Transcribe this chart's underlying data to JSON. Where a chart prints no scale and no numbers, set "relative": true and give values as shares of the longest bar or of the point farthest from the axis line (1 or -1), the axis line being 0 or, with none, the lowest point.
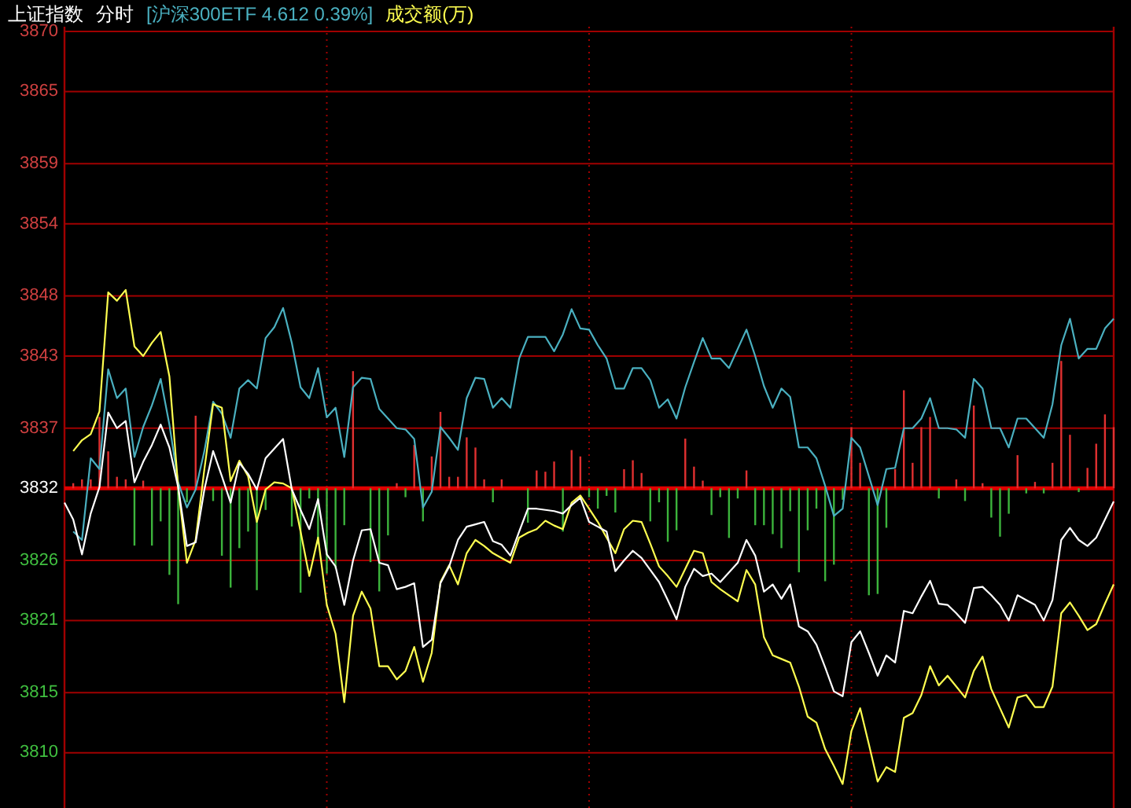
{
  "chart_data": [
    {
      "type": "line",
      "title": "上证指数",
      "subtitle": "分时",
      "grid": true,
      "tick_labels": "y",
      "categories": [
        null,
        null,
        null,
        null,
        null,
        null,
        null,
        null,
        null,
        null,
        null,
        null,
        null,
        null,
        null,
        null,
        null,
        null,
        null,
        null,
        null,
        null,
        null,
        null,
        null,
        null,
        null,
        null,
        null,
        null,
        null,
        null,
        null,
        null,
        null,
        null,
        null,
        null,
        null,
        null,
        null,
        null,
        null,
        null,
        null,
        null,
        null,
        null,
        null,
        null,
        null,
        null,
        null,
        null,
        null,
        null,
        null,
        null,
        null,
        null,
        null,
        null,
        null,
        null,
        null,
        null,
        null,
        null,
        null,
        null,
        null,
        null,
        null,
        null,
        null,
        null,
        null,
        null,
        null,
        null,
        null,
        null,
        null,
        null,
        null,
        null,
        null,
        null,
        null,
        null,
        null,
        null,
        null,
        null,
        null,
        null,
        null,
        null,
        null,
        null,
        null,
        null,
        null,
        null,
        null,
        null,
        null,
        null,
        null,
        null,
        null,
        null,
        null,
        null,
        null,
        null,
        null,
        null,
        null,
        null,
        null
      ],
      "ylim": [
        3805.4,
        3870.4
      ],
      "yticks": [
        3810,
        3815,
        3821,
        3826,
        3832,
        3837,
        3843,
        3848,
        3854,
        3859,
        3865,
        3870
      ],
      "ref_lines": [
        {
          "axis": "y",
          "value": 3832,
          "color": "#e00000"
        }
      ],
      "series": [
        {
          "name": "[沪深300ETF 4.612 0.39%]",
          "color": "#4ab0c0",
          "values": [
            null,
            3828.4,
            3827.7,
            3834.5,
            3833.6,
            3841.9,
            3839.5,
            3840.3,
            3834.6,
            3837.1,
            3838.9,
            3841.1,
            3837.3,
            3832.5,
            3830.4,
            3831.9,
            3835.1,
            3839.2,
            3838.2,
            3836.2,
            3840.3,
            3841.0,
            3840.3,
            3844.5,
            3845.4,
            3847.0,
            3844.1,
            3840.4,
            3839.5,
            3842.0,
            3837.9,
            3838.7,
            3834.6,
            3840.4,
            3841.2,
            3841.1,
            3838.6,
            3837.8,
            3837.0,
            3836.9,
            3836.1,
            3830.4,
            3831.7,
            3837.1,
            3836.2,
            3835.2,
            3839.5,
            3841.2,
            3841.1,
            3838.7,
            3839.5,
            3838.7,
            3842.8,
            3844.6,
            3844.6,
            3844.6,
            3843.4,
            3844.8,
            3846.9,
            3845.3,
            3845.2,
            3843.9,
            3842.8,
            3840.3,
            3840.3,
            3842.0,
            3842.0,
            3841.0,
            3838.7,
            3839.4,
            3837.8,
            3840.4,
            3842.5,
            3844.5,
            3842.8,
            3842.8,
            3842.0,
            3843.6,
            3845.2,
            3843.0,
            3840.5,
            3838.7,
            3840.3,
            3839.6,
            3835.4,
            3835.4,
            3834.5,
            3832.2,
            3829.7,
            3830.3,
            3836.2,
            3835.4,
            3833.0,
            3830.6,
            3833.6,
            3833.7,
            3837.0,
            3837.0,
            3837.8,
            3839.5,
            3837.0,
            3837.0,
            3836.9,
            3836.2,
            3841.1,
            3840.3,
            3837.0,
            3837.0,
            3835.4,
            3837.8,
            3837.8,
            3837.0,
            3836.2,
            3839.0,
            3843.9,
            3846.1,
            3842.8,
            3843.6,
            3843.6,
            3845.3,
            3846.1
          ]
        },
        {
          "name": "成交额(万)",
          "color": "#ffff50",
          "values": [
            null,
            3835.1,
            3836.0,
            3836.5,
            3838.4,
            3848.3,
            3847.6,
            3848.5,
            3843.8,
            3843.0,
            3844.1,
            3845.0,
            3841.3,
            3832.1,
            3825.8,
            3827.7,
            3833.6,
            3839.0,
            3838.7,
            3832.6,
            3834.3,
            3833.0,
            3829.2,
            3831.9,
            3832.5,
            3832.4,
            3832.0,
            3828.4,
            3824.7,
            3827.9,
            3822.3,
            3819.9,
            3814.2,
            3821.4,
            3823.4,
            3822.0,
            3817.2,
            3817.2,
            3816.1,
            3816.8,
            3818.8,
            3815.9,
            3818.3,
            3824.2,
            3825.6,
            3824.0,
            3826.6,
            3827.7,
            3827.2,
            3826.6,
            3826.2,
            3825.8,
            3827.9,
            3828.3,
            3828.6,
            3829.3,
            3828.9,
            3828.6,
            3830.8,
            3831.4,
            3830.3,
            3829.2,
            3827.9,
            3826.6,
            3828.6,
            3829.3,
            3829.2,
            3827.4,
            3825.5,
            3824.7,
            3823.8,
            3825.3,
            3826.8,
            3826.6,
            3824.2,
            3823.6,
            3823.1,
            3822.6,
            3825.2,
            3824.0,
            3819.6,
            3818.1,
            3817.8,
            3817.5,
            3815.5,
            3813.0,
            3812.5,
            3810.3,
            3808.9,
            3807.4,
            3811.8,
            3813.7,
            3810.7,
            3807.6,
            3808.8,
            3808.4,
            3812.9,
            3813.3,
            3814.8,
            3817.2,
            3815.6,
            3816.4,
            3815.5,
            3814.6,
            3816.8,
            3818.0,
            3815.3,
            3813.7,
            3812.1,
            3814.6,
            3814.8,
            3813.8,
            3813.8,
            3815.5,
            3821.6,
            3822.5,
            3821.4,
            3820.2,
            3820.7,
            3822.4,
            3824.0
          ]
        },
        {
          "color": "#ffffff",
          "values": [
            3830.8,
            3829.4,
            3826.5,
            3829.9,
            3832.1,
            3838.3,
            3837.0,
            3837.6,
            3832.5,
            3834.2,
            3835.6,
            3837.3,
            3835.4,
            3832.1,
            3827.2,
            3827.5,
            3831.9,
            3835.1,
            3833.0,
            3830.8,
            3834.1,
            3833.2,
            3831.9,
            3834.5,
            3835.3,
            3836.1,
            3831.9,
            3830.2,
            3828.6,
            3831.1,
            3826.5,
            3825.5,
            3822.3,
            3826.0,
            3828.5,
            3828.6,
            3825.8,
            3825.6,
            3823.6,
            3823.8,
            3824.1,
            3818.8,
            3819.4,
            3824.1,
            3825.5,
            3827.7,
            3828.8,
            3829.0,
            3829.2,
            3827.6,
            3827.3,
            3826.4,
            3828.4,
            3830.3,
            3830.3,
            3830.2,
            3830.1,
            3829.9,
            3830.6,
            3831.2,
            3829.2,
            3828.8,
            3828.4,
            3825.1,
            3826.0,
            3826.8,
            3826.2,
            3825.2,
            3824.2,
            3822.7,
            3821.1,
            3823.8,
            3825.3,
            3824.7,
            3824.9,
            3824.2,
            3825.0,
            3825.8,
            3827.7,
            3826.4,
            3823.4,
            3824.0,
            3822.8,
            3824.0,
            3820.5,
            3820.1,
            3819.0,
            3817.1,
            3815.1,
            3814.7,
            3819.2,
            3820.1,
            3818.3,
            3816.4,
            3818.1,
            3817.5,
            3821.8,
            3821.6,
            3823.0,
            3824.3,
            3822.4,
            3822.3,
            3821.6,
            3820.8,
            3823.7,
            3823.8,
            3823.1,
            3822.3,
            3821.0,
            3823.1,
            3822.7,
            3822.3,
            3821.0,
            3822.7,
            3827.7,
            3828.7,
            3827.7,
            3827.2,
            3827.9,
            3829.4,
            3830.9
          ]
        }
      ]
    },
    {
      "type": "bar",
      "relative": true,
      "categories": [
        null,
        null,
        null,
        null,
        null,
        null,
        null,
        null,
        null,
        null,
        null,
        null,
        null,
        null,
        null,
        null,
        null,
        null,
        null,
        null,
        null,
        null,
        null,
        null,
        null,
        null,
        null,
        null,
        null,
        null,
        null,
        null,
        null,
        null,
        null,
        null,
        null,
        null,
        null,
        null,
        null,
        null,
        null,
        null,
        null,
        null,
        null,
        null,
        null,
        null,
        null,
        null,
        null,
        null,
        null,
        null,
        null,
        null,
        null,
        null,
        null,
        null,
        null,
        null,
        null,
        null,
        null,
        null,
        null,
        null,
        null,
        null,
        null,
        null,
        null,
        null,
        null,
        null,
        null,
        null,
        null,
        null,
        null,
        null,
        null,
        null,
        null,
        null,
        null,
        null,
        null,
        null,
        null,
        null,
        null,
        null,
        null,
        null,
        null,
        null,
        null,
        null,
        null,
        null,
        null,
        null,
        null,
        null,
        null,
        null,
        null,
        null,
        null,
        null,
        null,
        null,
        null,
        null,
        null,
        null,
        null
      ],
      "values": [
        0,
        0.04,
        0.07,
        0.07,
        0.56,
        0.29,
        0.09,
        0.07,
        -0.45,
        0.06,
        -0.45,
        -0.26,
        -0.68,
        -0.91,
        -0.11,
        0.57,
        0,
        -0.1,
        -0.53,
        -0.78,
        -0.47,
        -0.34,
        -0.8,
        -0.17,
        0,
        0,
        -0.3,
        -0.82,
        -0.08,
        -0.44,
        -0.67,
        -0.63,
        -0.29,
        0.92,
        0,
        -0.58,
        -0.81,
        -0.37,
        0.04,
        -0.07,
        0.34,
        -0.26,
        0.25,
        0.6,
        0.09,
        0.09,
        0.4,
        0.32,
        0.07,
        -0.11,
        0.07,
        0,
        0,
        -0.27,
        0.14,
        0.13,
        0.21,
        -0.34,
        0.3,
        0.25,
        -0.07,
        -0.16,
        -0.06,
        -0.19,
        0.15,
        0.22,
        0.12,
        -0.26,
        -0.11,
        -0.42,
        -0.33,
        0.39,
        0.17,
        0.06,
        -0.21,
        -0.07,
        -0.39,
        -0.08,
        0.14,
        -0.29,
        -0.29,
        -0.36,
        -0.47,
        -0.18,
        -0.66,
        -0.33,
        -0.16,
        -0.73,
        -0.6,
        -0.09,
        0.48,
        0.2,
        -0.84,
        -0.83,
        -0.31,
        0.15,
        0.77,
        0.2,
        0.48,
        0.56,
        -0.08,
        0,
        0.07,
        -0.1,
        0.65,
        0.04,
        -0.23,
        -0.38,
        -0.2,
        0.26,
        -0.04,
        0.05,
        -0.04,
        0.2,
        1,
        0.42,
        -0.03,
        0.16,
        0.35,
        0.58,
        0.48
      ],
      "colors": [
        "#e03030",
        "#e03030",
        "#e03030",
        "#e03030",
        "#e03030",
        "#e03030",
        "#e03030",
        "#e03030",
        "#3cb43c",
        "#e03030",
        "#3cb43c",
        "#3cb43c",
        "#3cb43c",
        "#3cb43c",
        "#3cb43c",
        "#e03030",
        "#e03030",
        "#3cb43c",
        "#3cb43c",
        "#3cb43c",
        "#3cb43c",
        "#3cb43c",
        "#3cb43c",
        "#3cb43c",
        "#e03030",
        "#e03030",
        "#3cb43c",
        "#3cb43c",
        "#3cb43c",
        "#3cb43c",
        "#3cb43c",
        "#3cb43c",
        "#3cb43c",
        "#e03030",
        "#e03030",
        "#3cb43c",
        "#3cb43c",
        "#3cb43c",
        "#e03030",
        "#3cb43c",
        "#e03030",
        "#3cb43c",
        "#e03030",
        "#e03030",
        "#e03030",
        "#e03030",
        "#e03030",
        "#e03030",
        "#e03030",
        "#3cb43c",
        "#e03030",
        "#e03030",
        "#e03030",
        "#3cb43c",
        "#e03030",
        "#e03030",
        "#e03030",
        "#3cb43c",
        "#e03030",
        "#e03030",
        "#3cb43c",
        "#3cb43c",
        "#3cb43c",
        "#3cb43c",
        "#e03030",
        "#e03030",
        "#e03030",
        "#3cb43c",
        "#3cb43c",
        "#3cb43c",
        "#3cb43c",
        "#e03030",
        "#e03030",
        "#e03030",
        "#3cb43c",
        "#3cb43c",
        "#3cb43c",
        "#3cb43c",
        "#e03030",
        "#3cb43c",
        "#3cb43c",
        "#3cb43c",
        "#3cb43c",
        "#3cb43c",
        "#3cb43c",
        "#3cb43c",
        "#3cb43c",
        "#3cb43c",
        "#3cb43c",
        "#3cb43c",
        "#e03030",
        "#e03030",
        "#3cb43c",
        "#3cb43c",
        "#3cb43c",
        "#e03030",
        "#e03030",
        "#e03030",
        "#e03030",
        "#e03030",
        "#3cb43c",
        "#e03030",
        "#e03030",
        "#3cb43c",
        "#e03030",
        "#e03030",
        "#3cb43c",
        "#3cb43c",
        "#3cb43c",
        "#e03030",
        "#3cb43c",
        "#e03030",
        "#3cb43c",
        "#e03030",
        "#e03030",
        "#e03030",
        "#3cb43c",
        "#e03030",
        "#e03030",
        "#e03030",
        "#e03030"
      ]
    }
  ]
}
